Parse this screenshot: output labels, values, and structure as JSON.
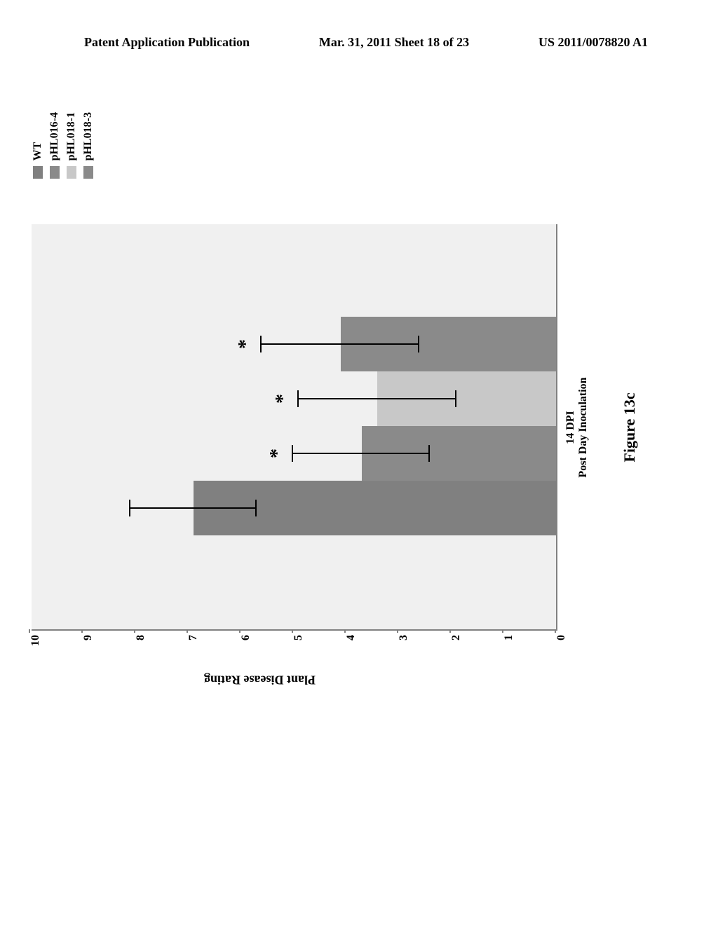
{
  "header": {
    "left": "Patent Application Publication",
    "center": "Mar. 31, 2011  Sheet 18 of 23",
    "right": "US 2011/0078820 A1"
  },
  "chart": {
    "type": "bar",
    "y_label": "Plant Disease Rating",
    "x_label_main": "14 DPI",
    "x_label_sub": "Post Day Inoculation",
    "ylim": [
      0,
      10
    ],
    "ytick_step": 1,
    "y_ticks": [
      "0",
      "1",
      "2",
      "3",
      "4",
      "5",
      "6",
      "7",
      "8",
      "9",
      "10"
    ],
    "background_color": "#f0f0f0",
    "axis_color": "#808080",
    "bars": [
      {
        "label": "WT",
        "value": 6.9,
        "error": 1.2,
        "color": "#808080",
        "significant": false
      },
      {
        "label": "pHL016-4",
        "value": 3.7,
        "error": 1.3,
        "color": "#8a8a8a",
        "significant": true
      },
      {
        "label": "pHL018-1",
        "value": 3.4,
        "error": 1.5,
        "color": "#c8c8c8",
        "significant": true
      },
      {
        "label": "pHL018-3",
        "value": 4.1,
        "error": 1.5,
        "color": "#8a8a8a",
        "significant": true
      }
    ],
    "legend_items": [
      {
        "label": "WT",
        "color": "#808080"
      },
      {
        "label": "pHL016-4",
        "color": "#8a8a8a"
      },
      {
        "label": "pHL018-1",
        "color": "#c8c8c8"
      },
      {
        "label": "pHL018-3",
        "color": "#8a8a8a"
      }
    ],
    "sig_symbol": "*",
    "label_fontsize": 18,
    "tick_fontsize": 16
  },
  "caption": "Figure 13c"
}
